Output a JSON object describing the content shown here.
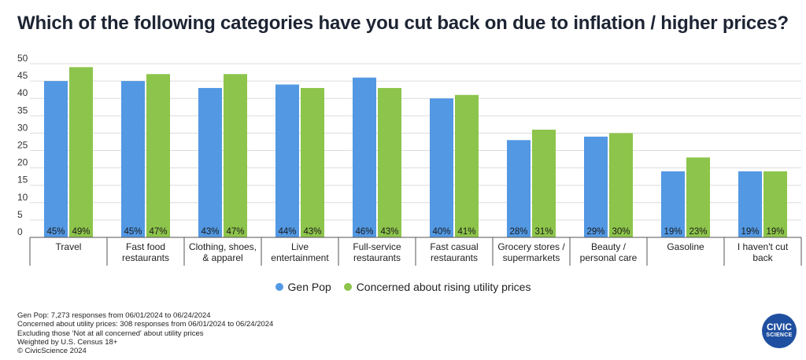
{
  "title": "Which of the following categories have you cut back on due to inflation / higher prices?",
  "chart_data": {
    "type": "bar",
    "categories": [
      [
        "Travel"
      ],
      [
        "Fast food",
        "restaurants"
      ],
      [
        "Clothing, shoes,",
        "& apparel"
      ],
      [
        "Live",
        "entertainment"
      ],
      [
        "Full-service",
        "restaurants"
      ],
      [
        "Fast casual",
        "restaurants"
      ],
      [
        "Grocery stores /",
        "supermarkets"
      ],
      [
        "Beauty /",
        "personal care"
      ],
      [
        "Gasoline"
      ],
      [
        "I haven't cut",
        "back"
      ]
    ],
    "series": [
      {
        "name": "Gen Pop",
        "values": [
          45,
          45,
          43,
          44,
          46,
          40,
          28,
          29,
          19,
          19
        ],
        "color": "#5398e3"
      },
      {
        "name": "Concerned about rising utility prices",
        "values": [
          49,
          47,
          47,
          43,
          43,
          41,
          31,
          30,
          23,
          19
        ],
        "color": "#8dc44b"
      }
    ],
    "ylim": [
      0,
      50
    ],
    "yticks": [
      0,
      5,
      10,
      15,
      20,
      25,
      30,
      35,
      40,
      45,
      50
    ],
    "value_suffix": "%",
    "grid": true,
    "legend_position": "bottom"
  },
  "footnotes": [
    "Gen Pop: 7,273 responses from 06/01/2024 to 06/24/2024",
    "Concerned about utility prices: 308 responses from 06/01/2024 to 06/24/2024",
    "Excluding those 'Not at all concerned' about utility prices",
    "Weighted by U.S. Census 18+",
    "© CivicScience 2024"
  ],
  "logo": {
    "line1": "CIVIC",
    "line2": "SCIENCE"
  }
}
